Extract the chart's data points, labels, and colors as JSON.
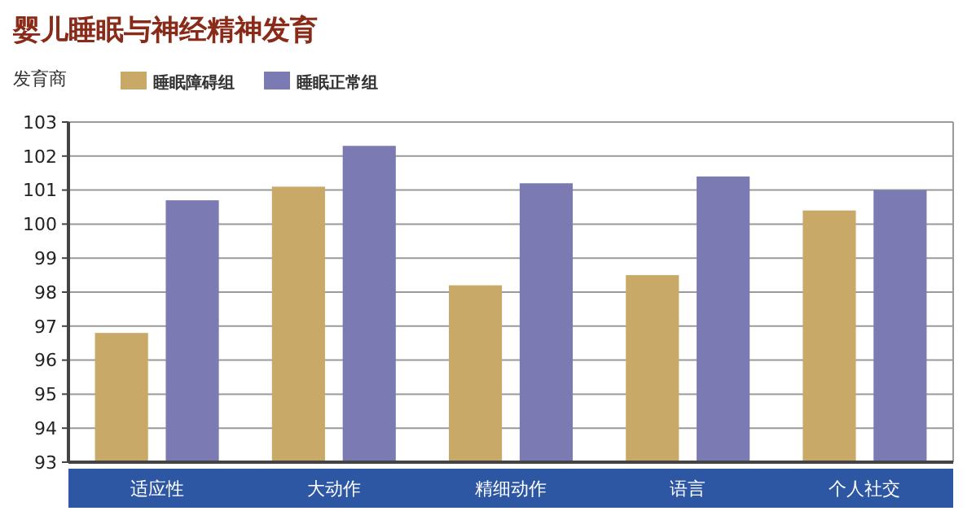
{
  "chart_data": {
    "type": "bar",
    "title": "婴儿睡眠与神经精神发育",
    "ylabel": "发育商",
    "categories": [
      "适应性",
      "大动作",
      "精细动作",
      "语言",
      "个人社交"
    ],
    "series": [
      {
        "name": "睡眠障碍组",
        "color": "#c9a968",
        "values": [
          96.8,
          101.1,
          98.2,
          98.5,
          100.4
        ]
      },
      {
        "name": "睡眠正常组",
        "color": "#7b7ab2",
        "values": [
          100.7,
          102.3,
          101.2,
          101.4,
          101.0
        ]
      }
    ],
    "ylim": [
      93,
      103
    ],
    "yticks": [
      93,
      94,
      95,
      96,
      97,
      98,
      99,
      100,
      101,
      102,
      103
    ],
    "grid": "y",
    "legend": "top"
  }
}
